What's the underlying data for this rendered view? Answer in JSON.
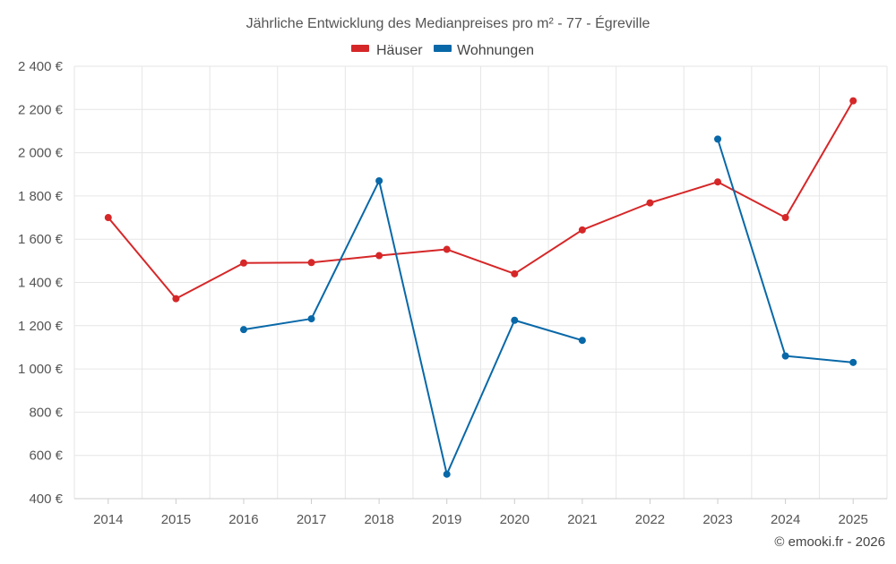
{
  "chart_data": {
    "type": "line",
    "title": "Jährliche Entwicklung des Medianpreises pro m² - 77 - Égreville",
    "categories": [
      "2014",
      "2015",
      "2016",
      "2017",
      "2018",
      "2019",
      "2020",
      "2021",
      "2022",
      "2023",
      "2024",
      "2025"
    ],
    "series": [
      {
        "name": "Häuser",
        "color": "#d62728",
        "values": [
          1700,
          1325,
          1490,
          1492,
          1524,
          1553,
          1440,
          1643,
          1768,
          1865,
          1700,
          2240
        ]
      },
      {
        "name": "Wohnungen",
        "color": "#0868a8",
        "values": [
          null,
          null,
          1182,
          1232,
          1870,
          513,
          1225,
          1132,
          null,
          2063,
          1060,
          1030
        ]
      }
    ],
    "y_ticks": [
      400,
      600,
      800,
      1000,
      1200,
      1400,
      1600,
      1800,
      2000,
      2200,
      2400
    ],
    "y_tick_labels": [
      "400 €",
      "600 €",
      "800 €",
      "1 000 €",
      "1 200 €",
      "1 400 €",
      "1 600 €",
      "1 800 €",
      "2 000 €",
      "2 200 €",
      "2 400 €"
    ],
    "ylim": [
      400,
      2400
    ],
    "legend_position": "top-center",
    "grid": true,
    "xlabel": "",
    "ylabel": ""
  },
  "credit": "© emooki.fr - 2026"
}
